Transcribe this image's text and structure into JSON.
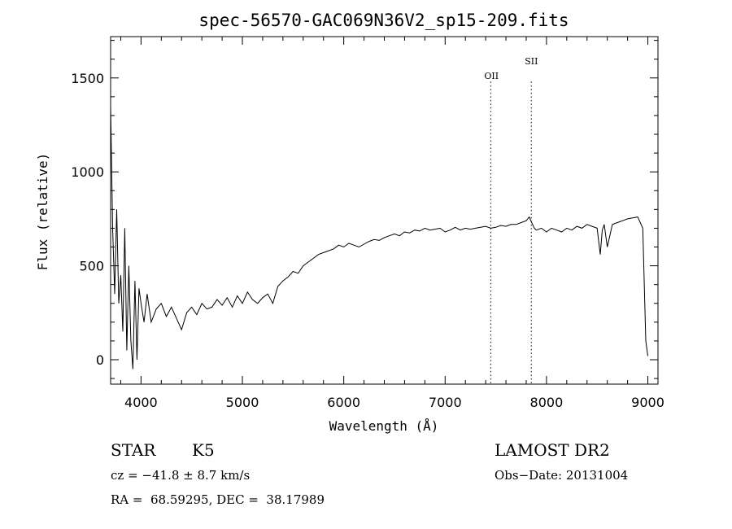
{
  "chart_data": {
    "type": "line",
    "title": "spec-56570-GAC069N36V2_sp15-209.fits",
    "xlabel": "Wavelength (Å)",
    "ylabel": "Flux (relative)",
    "xlim": [
      3700,
      9100
    ],
    "ylim": [
      -130,
      1720
    ],
    "x_ticks": [
      4000,
      5000,
      6000,
      7000,
      8000,
      9000
    ],
    "y_ticks": [
      0,
      500,
      1000,
      1500
    ],
    "grid": false,
    "lines": [
      {
        "label": "OII",
        "x": 7450
      },
      {
        "label": "SII",
        "x": 7850
      }
    ],
    "series": [
      {
        "x": [
          3700,
          3720,
          3740,
          3760,
          3780,
          3800,
          3820,
          3840,
          3860,
          3880,
          3900,
          3920,
          3940,
          3960,
          3980,
          4000,
          4030,
          4060,
          4100,
          4150,
          4200,
          4250,
          4300,
          4350,
          4400,
          4450,
          4500,
          4550,
          4600,
          4650,
          4700,
          4750,
          4800,
          4850,
          4900,
          4950,
          5000,
          5050,
          5100,
          5150,
          5200,
          5250,
          5300,
          5350,
          5400,
          5450,
          5500,
          5550,
          5600,
          5650,
          5700,
          5750,
          5800,
          5850,
          5900,
          5950,
          6000,
          6050,
          6100,
          6150,
          6200,
          6250,
          6300,
          6350,
          6400,
          6450,
          6500,
          6550,
          6600,
          6650,
          6700,
          6750,
          6800,
          6850,
          6900,
          6950,
          7000,
          7050,
          7100,
          7150,
          7200,
          7250,
          7300,
          7350,
          7400,
          7450,
          7500,
          7550,
          7600,
          7650,
          7700,
          7750,
          7800,
          7830,
          7850,
          7880,
          7900,
          7950,
          8000,
          8050,
          8100,
          8150,
          8200,
          8250,
          8300,
          8350,
          8400,
          8450,
          8500,
          8530,
          8550,
          8570,
          8600,
          8650,
          8700,
          8750,
          8800,
          8850,
          8900,
          8950,
          8980,
          9000
        ],
        "y": [
          1350,
          700,
          350,
          800,
          300,
          450,
          150,
          700,
          50,
          500,
          100,
          -50,
          420,
          0,
          380,
          300,
          200,
          350,
          200,
          270,
          300,
          230,
          280,
          220,
          160,
          250,
          280,
          240,
          300,
          270,
          280,
          320,
          290,
          330,
          280,
          340,
          300,
          360,
          320,
          300,
          330,
          350,
          300,
          390,
          420,
          440,
          470,
          460,
          500,
          520,
          540,
          560,
          570,
          580,
          590,
          610,
          600,
          620,
          610,
          600,
          615,
          630,
          640,
          635,
          650,
          660,
          670,
          660,
          680,
          675,
          690,
          685,
          700,
          690,
          695,
          700,
          680,
          690,
          705,
          690,
          700,
          695,
          700,
          705,
          710,
          700,
          705,
          715,
          710,
          720,
          720,
          730,
          740,
          760,
          735,
          700,
          690,
          700,
          680,
          700,
          690,
          680,
          700,
          690,
          710,
          700,
          720,
          710,
          700,
          560,
          690,
          720,
          600,
          720,
          730,
          740,
          750,
          755,
          760,
          700,
          100,
          20
        ]
      }
    ]
  },
  "info": {
    "object_class": "STAR",
    "subclass": "K5",
    "survey": "LAMOST DR2",
    "redshift": "cz = −41.8 ± 8.7 km/s",
    "obs_date": "Obs−Date: 20131004",
    "coords": "RA =  68.59295, DEC =  38.17989"
  }
}
